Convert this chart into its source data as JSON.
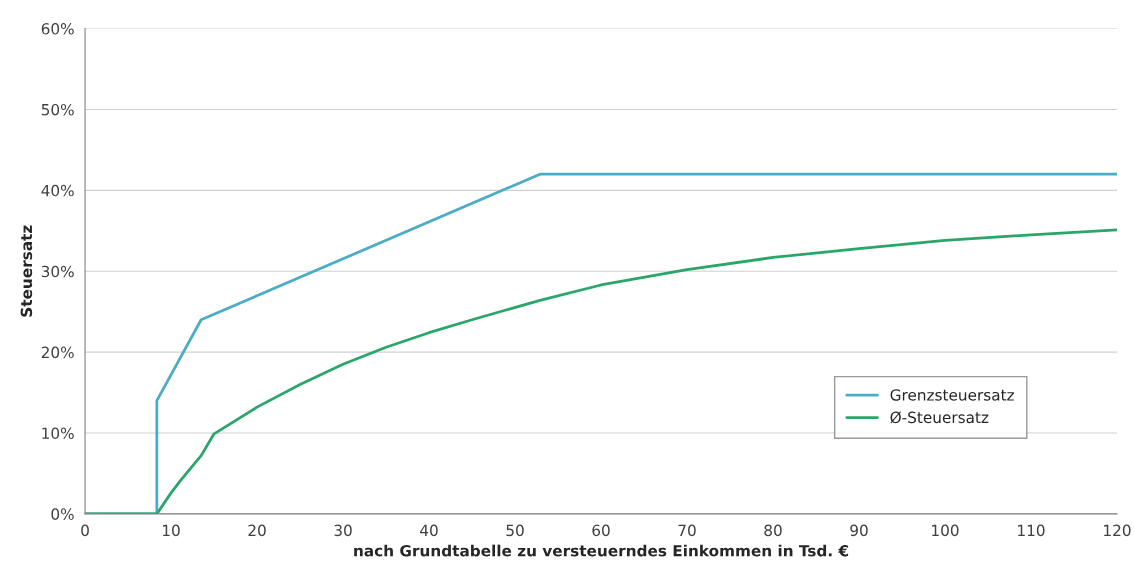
{
  "chart_data": {
    "type": "line",
    "xlabel": "nach Grundtabelle zu versteuerndes Einkommen in Tsd. €",
    "ylabel": "Steuersatz",
    "xlim": [
      0,
      120
    ],
    "xticks": [
      0,
      10,
      20,
      30,
      40,
      50,
      60,
      70,
      80,
      90,
      100,
      110,
      120
    ],
    "ylim": [
      0,
      60
    ],
    "yticks": [
      {
        "value": 0,
        "label": "0%"
      },
      {
        "value": 10,
        "label": "10%"
      },
      {
        "value": 20,
        "label": "20%"
      },
      {
        "value": 30,
        "label": "30%"
      },
      {
        "value": 40,
        "label": "40%"
      },
      {
        "value": 50,
        "label": "50%"
      },
      {
        "value": 60,
        "label": "60%"
      }
    ],
    "grid": "y",
    "legend": "bottom right",
    "marker": "none",
    "line_style": "solid",
    "series": [
      {
        "name": "Grenzsteuersatz",
        "color": "#4bacc6",
        "x": [
          0,
          8.35,
          8.35,
          13.5,
          52.9,
          120
        ],
        "values": [
          0,
          0,
          14,
          24,
          42,
          42
        ]
      },
      {
        "name": "Ø-Steuersatz",
        "color": "#2aa66b",
        "x": [
          0,
          8.35,
          10,
          11,
          12,
          13.5,
          15,
          20,
          25,
          30,
          35,
          40,
          45,
          52.9,
          60,
          70,
          80,
          90,
          100,
          110,
          120
        ],
        "values": [
          0,
          0,
          2.6,
          4.0,
          5.3,
          7.2,
          9.9,
          13.2,
          16.0,
          18.5,
          20.6,
          22.4,
          24.0,
          26.4,
          28.3,
          30.2,
          31.7,
          32.8,
          33.8,
          34.5,
          35.1
        ]
      }
    ]
  }
}
